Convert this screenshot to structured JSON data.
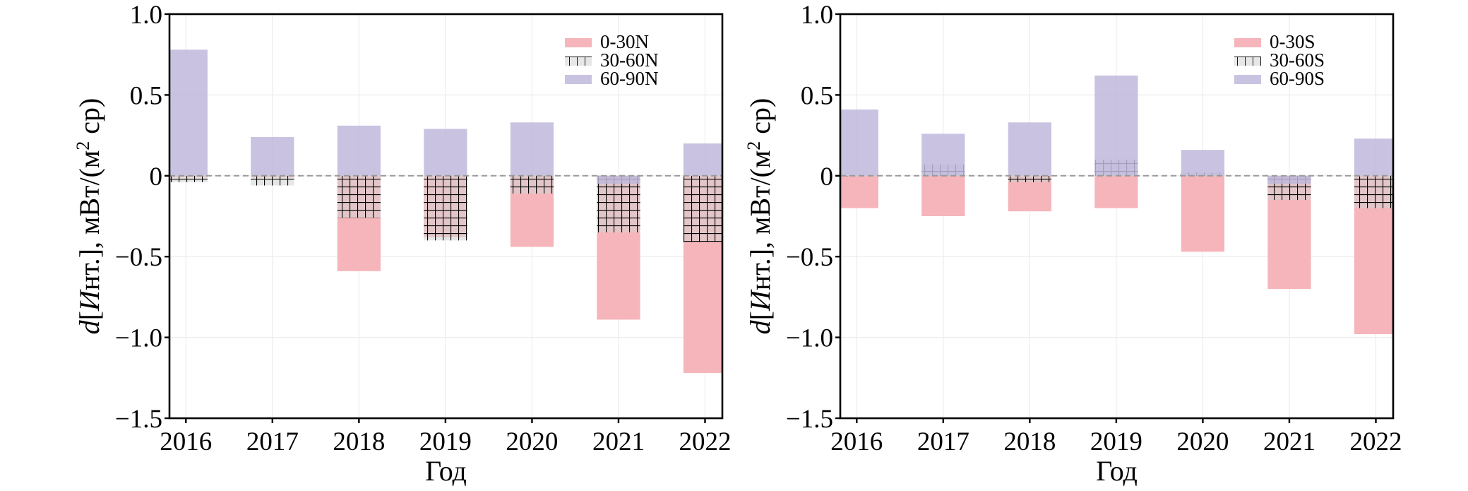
{
  "chart_data": [
    {
      "type": "bar",
      "bar_mode": "overlapping",
      "title": "",
      "xlabel": "Год",
      "ylabel": "d[Инт.], мВт/(м² ср)",
      "ylabel_parts": {
        "italic_d": "d",
        "bracket_open": "[",
        "italic_I": "И",
        "rest1": "нт.], мВт/(м",
        "sup": "2",
        "rest2": " ср)"
      },
      "categories": [
        "2016",
        "2017",
        "2018",
        "2019",
        "2020",
        "2021",
        "2022"
      ],
      "xlim": [
        2015.81,
        2022.2
      ],
      "ylim": [
        -1.5,
        1.0
      ],
      "yticks": [
        1.0,
        0.5,
        0,
        -0.5,
        -1.0,
        -1.5
      ],
      "ytick_labels": [
        "1.0",
        "0.5",
        "0",
        "−0.5",
        "−1.0",
        "−1.5"
      ],
      "grid": true,
      "zero_line": "dashed",
      "legend_position": "top-right",
      "series": [
        {
          "name": "0-30N",
          "color": "#f4a6ab",
          "hatch": "none",
          "values": [
            -0.01,
            -0.01,
            -0.59,
            -0.38,
            -0.44,
            -0.89,
            -1.22
          ]
        },
        {
          "name": "30-60N",
          "color": "#c8c8c8",
          "hatch": "grid",
          "values": [
            -0.04,
            -0.06,
            -0.26,
            -0.4,
            -0.11,
            -0.35,
            -0.41
          ]
        },
        {
          "name": "60-90N",
          "color": "#b1a9d6",
          "hatch": "none",
          "values": [
            0.78,
            0.24,
            0.31,
            0.29,
            0.33,
            -0.05,
            0.2
          ]
        }
      ]
    },
    {
      "type": "bar",
      "bar_mode": "overlapping",
      "title": "",
      "xlabel": "Год",
      "ylabel": "d[Инт.], мВт/(м² ср)",
      "ylabel_parts": {
        "italic_d": "d",
        "bracket_open": "[",
        "italic_I": "И",
        "rest1": "нт.], мВт/(м",
        "sup": "2",
        "rest2": " ср)"
      },
      "categories": [
        "2016",
        "2017",
        "2018",
        "2019",
        "2020",
        "2021",
        "2022"
      ],
      "xlim": [
        2015.81,
        2022.2
      ],
      "ylim": [
        -1.5,
        1.0
      ],
      "yticks": [
        1.0,
        0.5,
        0,
        -0.5,
        -1.0,
        -1.5
      ],
      "ytick_labels": [
        "1.0",
        "0.5",
        "0",
        "−0.5",
        "−1.0",
        "−1.5"
      ],
      "grid": true,
      "zero_line": "dashed",
      "legend_position": "top-right",
      "series": [
        {
          "name": "0-30S",
          "color": "#f4a6ab",
          "hatch": "none",
          "values": [
            -0.2,
            -0.25,
            -0.22,
            -0.2,
            -0.47,
            -0.7,
            -0.98
          ]
        },
        {
          "name": "30-60S",
          "color": "#c8c8c8",
          "hatch": "grid",
          "values": [
            0.0,
            0.07,
            -0.04,
            0.1,
            0.02,
            -0.15,
            -0.2
          ]
        },
        {
          "name": "60-90S",
          "color": "#b1a9d6",
          "hatch": "none",
          "values": [
            0.41,
            0.26,
            0.33,
            0.62,
            0.16,
            -0.05,
            0.23
          ]
        }
      ]
    }
  ]
}
